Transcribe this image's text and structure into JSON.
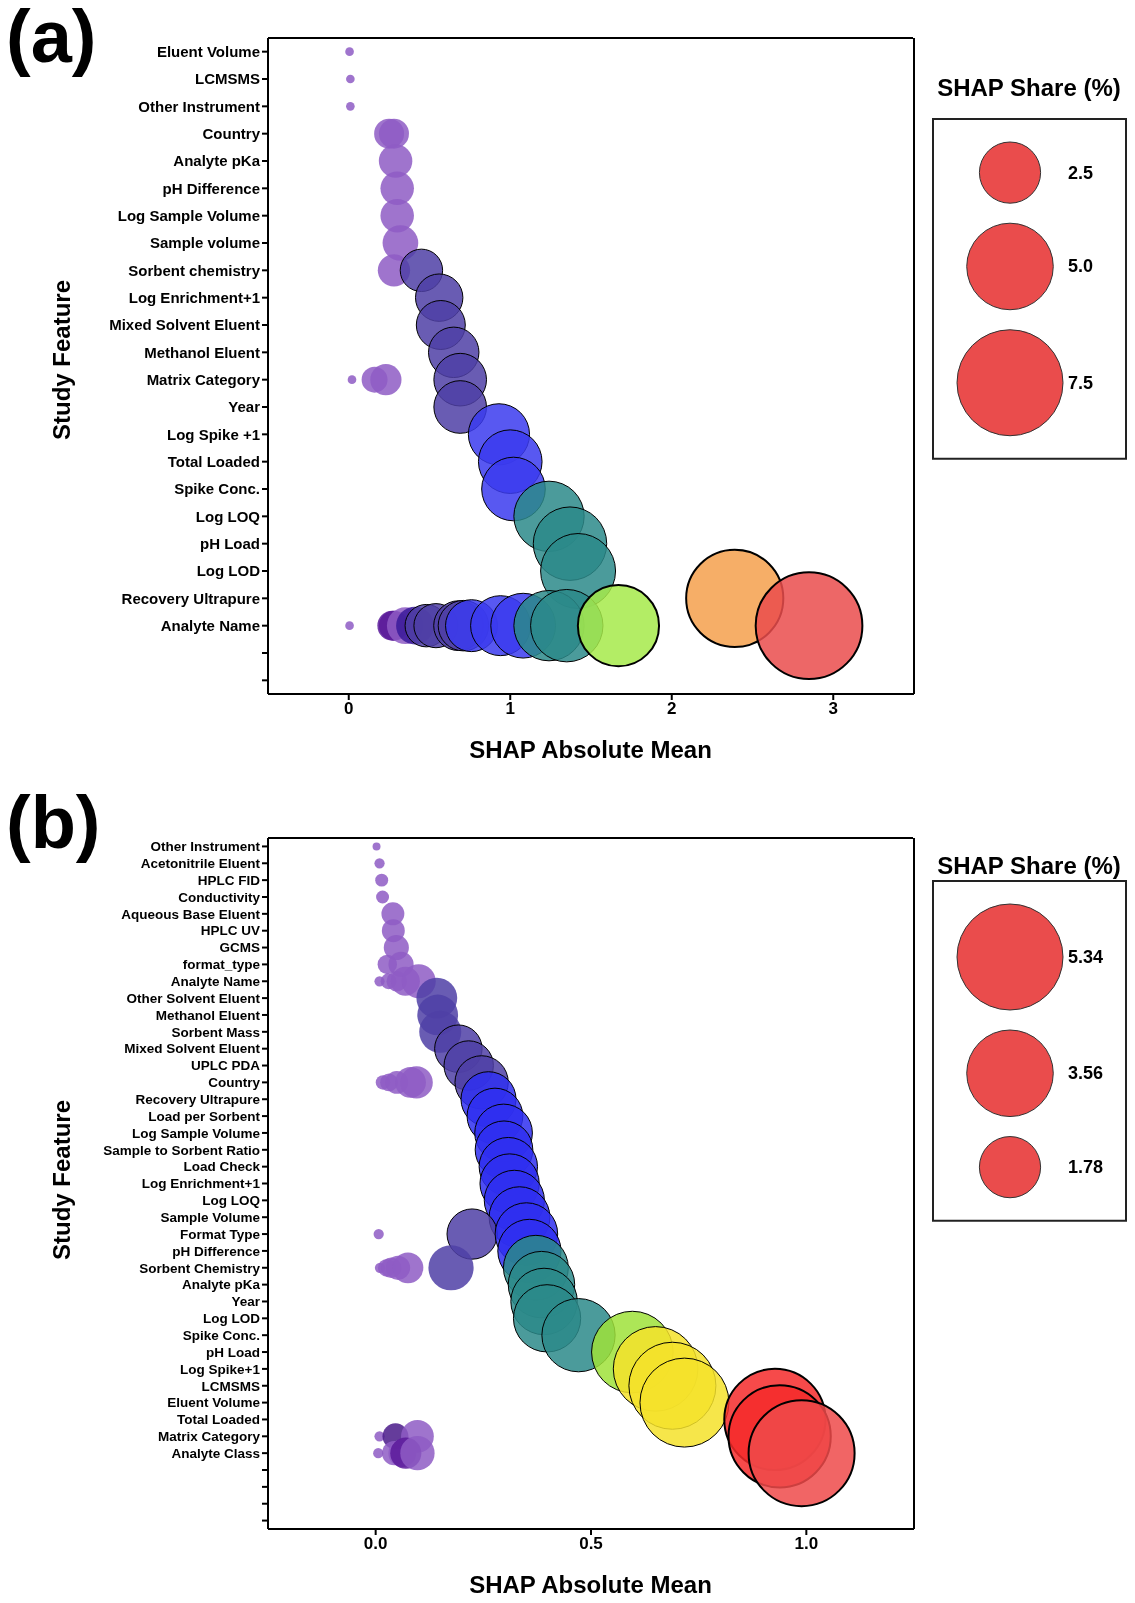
{
  "chart_data": [
    {
      "type": "bubble",
      "title": "(a)",
      "xlabel": "SHAP Absolute Mean",
      "ylabel": "Study Feature",
      "legend_title": "SHAP Share (%)",
      "orientation": "horizontal",
      "categories": [
        "Eluent Volume",
        "LCMSMS",
        "Other Instrument",
        "Country",
        "Analyte pKa",
        "pH Difference",
        "Log Sample Volume",
        "Sample volume",
        "Sorbent chemistry",
        "Log Enrichment+1",
        "Mixed Solvent Eluent",
        "Methanol Eluent",
        "Matrix Category",
        "Year",
        "Log Spike +1",
        "Total Loaded",
        "Spike Conc.",
        "Log LOQ",
        "pH Load",
        "Log LOD",
        "Recovery Ultrapure",
        "Analyte Name",
        null,
        null
      ],
      "xlim": [
        -0.5,
        3.5
      ],
      "xticks": [
        0,
        1,
        2,
        3
      ],
      "size_legend": [
        {
          "value": 2.5,
          "label": "2.5"
        },
        {
          "value": 5,
          "label": "5.0"
        },
        {
          "value": 7.5,
          "label": "7.5"
        }
      ],
      "series": [
        {
          "x": [
            "Eluent Volume",
            "LCMSMS",
            "Other Instrument",
            "Country",
            "Country",
            "Analyte pKa",
            "pH Difference",
            "Log Sample Volume",
            "Sample volume",
            "Sorbent chemistry",
            "Sorbent chemistry",
            "Log Enrichment+1",
            "Mixed Solvent Eluent",
            "Methanol Eluent",
            "Matrix Category",
            "Matrix Category",
            "Matrix Category",
            "Matrix Category",
            "Year",
            "Log Spike +1",
            "Total Loaded",
            "Spike Conc.",
            "Log LOQ",
            "pH Load",
            "Log LOD",
            "Recovery Ultrapure",
            "Analyte Name",
            "Analyte Name",
            "Analyte Name",
            "Analyte Name",
            "Analyte Name",
            "Analyte Name",
            "Analyte Name",
            "Analyte Name",
            "Analyte Name",
            "Analyte Name",
            "Analyte Name",
            "Analyte Name",
            "Analyte Name",
            "Analyte Name",
            "Analyte Name",
            "Analyte Name"
          ],
          "values": [
            0.005,
            0.01,
            0.01,
            0.25,
            0.28,
            0.29,
            0.3,
            0.3,
            0.32,
            0.28,
            0.45,
            0.56,
            0.57,
            0.65,
            0.02,
            0.16,
            0.23,
            0.69,
            0.69,
            0.93,
            1.0,
            1.02,
            1.24,
            1.37,
            1.42,
            2.39,
            0.005,
            0.27,
            0.28,
            0.35,
            0.41,
            0.48,
            0.54,
            0.68,
            0.71,
            0.76,
            0.94,
            1.08,
            1.24,
            1.35,
            1.67,
            2.85
          ],
          "sizes": [
            0.05,
            0.05,
            0.05,
            0.6,
            0.6,
            0.75,
            0.75,
            0.75,
            0.85,
            0.7,
            1.2,
            1.5,
            1.6,
            1.7,
            0.05,
            0.45,
            0.65,
            1.85,
            1.85,
            2.5,
            2.7,
            2.7,
            3.3,
            3.6,
            3.75,
            6.3,
            0.05,
            0.6,
            0.6,
            0.9,
            0.95,
            1.2,
            1.3,
            1.65,
            1.7,
            1.8,
            2.4,
            2.8,
            3.3,
            3.5,
            4.4,
            7.6
          ],
          "colors": [
            "#8e5cc4",
            "#8e5cc4",
            "#8e5cc4",
            "#8e5cc4",
            "#8e5cc4",
            "#8e5cc4",
            "#8e5cc4",
            "#8e5cc4",
            "#8e5cc4",
            "#8e5cc4",
            "#4f3fa6",
            "#4f3fa6",
            "#4f3fa6",
            "#4f3fa6",
            "#8e5cc4",
            "#8e5cc4",
            "#8e5cc4",
            "#4f3fa6",
            "#4f3fa6",
            "#3b3bef",
            "#3b3bef",
            "#3b3bef",
            "#2b8a8a",
            "#2b8a8a",
            "#2b8a8a",
            "#f5a04c",
            "#8e5cc4",
            "#5a1a9a",
            "#5a1a9a",
            "#8e5cc4",
            "#3a1a9a",
            "#4f3fa6",
            "#4f3fa6",
            "#4f3fa6",
            "#4f3fa6",
            "#3b3bef",
            "#3b3bef",
            "#3b3bef",
            "#2b8a8a",
            "#2b8a8a",
            "#a6ea4a",
            "#ea4c4c"
          ]
        }
      ]
    },
    {
      "type": "bubble",
      "title": "(b)",
      "xlabel": "SHAP Absolute Mean",
      "ylabel": "Study Feature",
      "legend_title": "SHAP Share (%)",
      "orientation": "horizontal",
      "categories": [
        "Other Instrument",
        "Acetonitrile Eluent",
        "HPLC FID",
        "Conductivity",
        "Aqueous Base Eluent",
        "HPLC UV",
        "GCMS",
        "format_type",
        "Analyte Name",
        "Other Solvent Eluent",
        "Methanol Eluent",
        "Sorbent Mass",
        "Mixed Solvent Eluent",
        "UPLC PDA",
        "Country",
        "Recovery Ultrapure",
        "Load per Sorbent",
        "Log Sample Volume",
        "Sample to Sorbent Ratio",
        "Load Check",
        "Log Enrichment+1",
        "Log LOQ",
        "Sample Volume",
        "Format Type",
        "pH Difference",
        "Sorbent Chemistry",
        "Analyte pKa",
        "Year",
        "Log LOD",
        "Spike Conc.",
        "pH Load",
        "Log Spike+1",
        "LCMSMS",
        "Eluent Volume",
        "Total Loaded",
        "Matrix Category",
        "Analyte Class",
        null,
        null,
        null,
        null
      ],
      "xlim": [
        -0.25,
        1.25
      ],
      "xticks": [
        {
          "value": 0,
          "label": "0.0"
        },
        {
          "value": 0.5,
          "label": "0.5"
        },
        {
          "value": 1,
          "label": "1.0"
        }
      ],
      "size_legend": [
        {
          "value": 5.34,
          "label": "5.34"
        },
        {
          "value": 3.56,
          "label": "3.56"
        },
        {
          "value": 1.78,
          "label": "1.78"
        }
      ],
      "series": [
        {
          "x": [
            "Other Instrument",
            "Acetonitrile Eluent",
            "HPLC FID",
            "Conductivity",
            "Aqueous Base Eluent",
            "HPLC UV",
            "GCMS",
            "format_type",
            "format_type",
            "Analyte Name",
            "Analyte Name",
            "Analyte Name",
            "Analyte Name",
            "Analyte Name",
            "Other Solvent Eluent",
            "Methanol Eluent",
            "Sorbent Mass",
            "Mixed Solvent Eluent",
            "UPLC PDA",
            "Country",
            "Country",
            "Country",
            "Country",
            "Country",
            "Country",
            "Recovery Ultrapure",
            "Load per Sorbent",
            "Log Sample Volume",
            "Sample to Sorbent Ratio",
            "Load Check",
            "Log Enrichment+1",
            "Log LOQ",
            "Sample Volume",
            "Format Type",
            "Format Type",
            "Format Type",
            "pH Difference",
            "Sorbent Chemistry",
            "Sorbent Chemistry",
            "Sorbent Chemistry",
            "Sorbent Chemistry",
            "Sorbent Chemistry",
            "Sorbent Chemistry",
            "Sorbent Chemistry",
            "Analyte pKa",
            "Year",
            "Log LOD",
            "Spike Conc.",
            "pH Load",
            "Log Spike+1",
            "LCMSMS",
            "Eluent Volume",
            "Total Loaded",
            "Matrix Category",
            "Matrix Category",
            "Matrix Category",
            "Matrix Category",
            "Analyte Class",
            "Analyte Class",
            "Analyte Class",
            "Analyte Class",
            "Analyte Class",
            "Analyte Class"
          ],
          "values": [
            0.002,
            0.009,
            0.014,
            0.016,
            0.04,
            0.041,
            0.048,
            0.027,
            0.059,
            0.009,
            0.03,
            0.049,
            0.069,
            0.1,
            0.142,
            0.144,
            0.15,
            0.192,
            0.216,
            0.017,
            0.031,
            0.049,
            0.081,
            0.095,
            0.246,
            0.262,
            0.277,
            0.297,
            0.298,
            0.308,
            0.311,
            0.322,
            0.334,
            0.007,
            0.224,
            0.35,
            0.357,
            0.01,
            0.026,
            0.036,
            0.052,
            0.075,
            0.175,
            0.372,
            0.385,
            0.391,
            0.398,
            0.471,
            0.596,
            0.65,
            0.689,
            0.717,
            0.927,
            0.009,
            0.046,
            0.097,
            0.938,
            0.006,
            0.043,
            0.062,
            0.07,
            0.097,
            0.989
          ],
          "sizes": [
            0.03,
            0.05,
            0.08,
            0.08,
            0.25,
            0.25,
            0.3,
            0.18,
            0.3,
            0.05,
            0.12,
            0.2,
            0.4,
            0.55,
            0.79,
            0.79,
            0.84,
            1.07,
            1.16,
            0.1,
            0.15,
            0.25,
            0.45,
            0.5,
            1.35,
            1.44,
            1.48,
            1.58,
            1.58,
            1.62,
            1.67,
            1.72,
            1.76,
            0.05,
            1.2,
            1.86,
            1.9,
            0.05,
            0.15,
            0.2,
            0.28,
            0.45,
            0.97,
            2.0,
            2.1,
            2.1,
            2.15,
            2.55,
            3.16,
            3.4,
            3.6,
            3.76,
            4.87,
            0.05,
            0.32,
            0.51,
            4.97,
            0.05,
            0.28,
            0.37,
            0.46,
            0.56,
            5.34
          ],
          "colors": [
            "#8e5cc4",
            "#8e5cc4",
            "#8e5cc4",
            "#8e5cc4",
            "#8e5cc4",
            "#8e5cc4",
            "#8e5cc4",
            "#8e5cc4",
            "#8e5cc4",
            "#8e5cc4",
            "#8e5cc4",
            "#8e5cc4",
            "#8e5cc4",
            "#8e5cc4",
            "#4f3fa6",
            "#4f3fa6",
            "#4f3fa6",
            "#4f3fa6",
            "#4f3fa6",
            "#8e5cc4",
            "#8e5cc4",
            "#8e5cc4",
            "#8e5cc4",
            "#8e5cc4",
            "#4f3fa6",
            "#2f2ff0",
            "#2f2ff0",
            "#2f2ff0",
            "#2f2ff0",
            "#2f2ff0",
            "#2f2ff0",
            "#2f2ff0",
            "#2f2ff0",
            "#8e5cc4",
            "#4f3fa6",
            "#2f2ff0",
            "#2f2ff0",
            "#8e5cc4",
            "#8e5cc4",
            "#8e5cc4",
            "#8e5cc4",
            "#8e5cc4",
            "#4f3fa6",
            "#2b8a8a",
            "#2b8a8a",
            "#2b8a8a",
            "#2b8a8a",
            "#2b8a8a",
            "#9fe23a",
            "#f5e22a",
            "#f5e22a",
            "#f5e22a",
            "#f52a2a",
            "#8e5cc4",
            "#4a1a8a",
            "#8e5cc4",
            "#f52a2a",
            "#8e5cc4",
            "#8e5cc4",
            "#8e5cc4",
            "#5a1a9a",
            "#8e5cc4",
            "#ee4a4a"
          ]
        }
      ]
    }
  ]
}
